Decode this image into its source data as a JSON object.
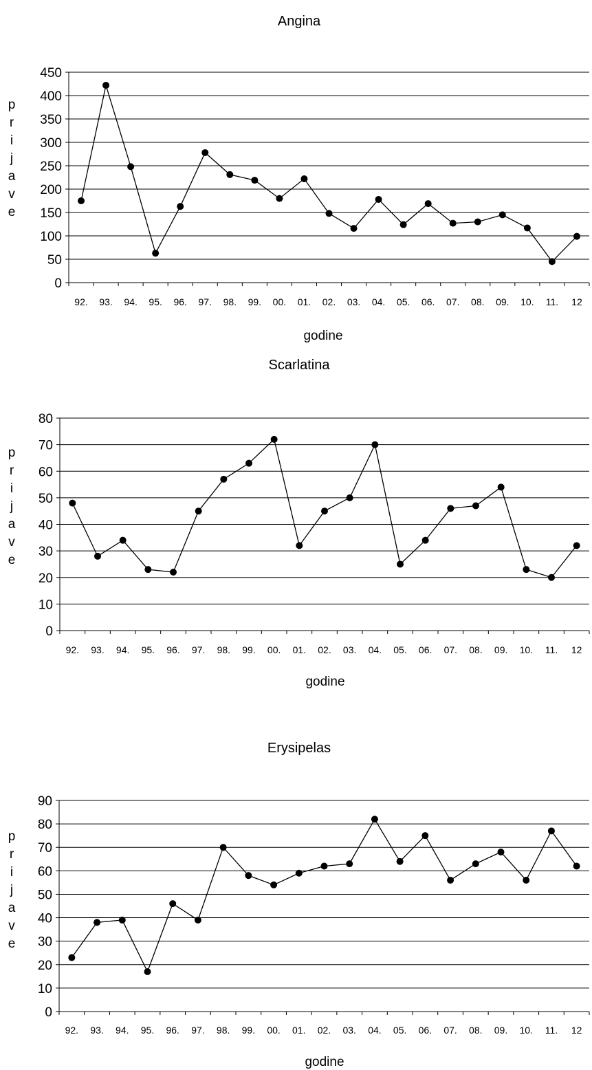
{
  "chart_data": [
    {
      "type": "line",
      "title": "Angina",
      "xlabel": "godine",
      "ylabel": "prijave",
      "categories": [
        "92.",
        "93.",
        "94.",
        "95.",
        "96.",
        "97.",
        "98.",
        "99.",
        "00.",
        "01.",
        "02.",
        "03.",
        "04.",
        "05.",
        "06.",
        "07.",
        "08.",
        "09.",
        "10.",
        "11.",
        "12"
      ],
      "ylim": [
        0,
        450
      ],
      "yticks": [
        "0",
        "50",
        "100",
        "150",
        "200",
        "250",
        "300",
        "350",
        "400",
        "450"
      ],
      "grid": true,
      "series": [
        {
          "values": [
            175,
            422,
            248,
            63,
            163,
            278,
            231,
            219,
            180,
            222,
            148,
            116,
            178,
            124,
            169,
            127,
            130,
            145,
            117,
            45,
            99
          ]
        }
      ],
      "colors": {
        "line": "#000000",
        "marker": "#000000",
        "grid": "#000000"
      }
    },
    {
      "type": "line",
      "title": "Scarlatina",
      "xlabel": "godine",
      "ylabel": "prijave",
      "categories": [
        "92.",
        "93.",
        "94.",
        "95.",
        "96.",
        "97.",
        "98.",
        "99.",
        "00.",
        "01.",
        "02.",
        "03.",
        "04.",
        "05.",
        "06.",
        "07.",
        "08.",
        "09.",
        "10.",
        "11.",
        "12"
      ],
      "ylim": [
        0,
        80
      ],
      "yticks": [
        "0",
        "10",
        "20",
        "30",
        "40",
        "50",
        "60",
        "70",
        "80"
      ],
      "grid": true,
      "series": [
        {
          "values": [
            48,
            28,
            34,
            23,
            22,
            45,
            57,
            63,
            72,
            32,
            45,
            50,
            70,
            25,
            34,
            46,
            47,
            54,
            23,
            20,
            32
          ]
        }
      ],
      "colors": {
        "line": "#000000",
        "marker": "#000000",
        "grid": "#000000"
      }
    },
    {
      "type": "line",
      "title": "Erysipelas",
      "xlabel": "godine",
      "ylabel": "prijave",
      "categories": [
        "92.",
        "93.",
        "94.",
        "95.",
        "96.",
        "97.",
        "98.",
        "99.",
        "00.",
        "01.",
        "02.",
        "03.",
        "04.",
        "05.",
        "06.",
        "07.",
        "08.",
        "09.",
        "10.",
        "11.",
        "12"
      ],
      "ylim": [
        0,
        90
      ],
      "yticks": [
        "0",
        "10",
        "20",
        "30",
        "40",
        "50",
        "60",
        "70",
        "80",
        "90"
      ],
      "grid": true,
      "series": [
        {
          "values": [
            23,
            38,
            39,
            17,
            46,
            39,
            70,
            58,
            54,
            59,
            62,
            63,
            82,
            64,
            75,
            56,
            63,
            68,
            56,
            77,
            62
          ]
        }
      ],
      "colors": {
        "line": "#000000",
        "marker": "#000000",
        "grid": "#000000"
      }
    }
  ]
}
